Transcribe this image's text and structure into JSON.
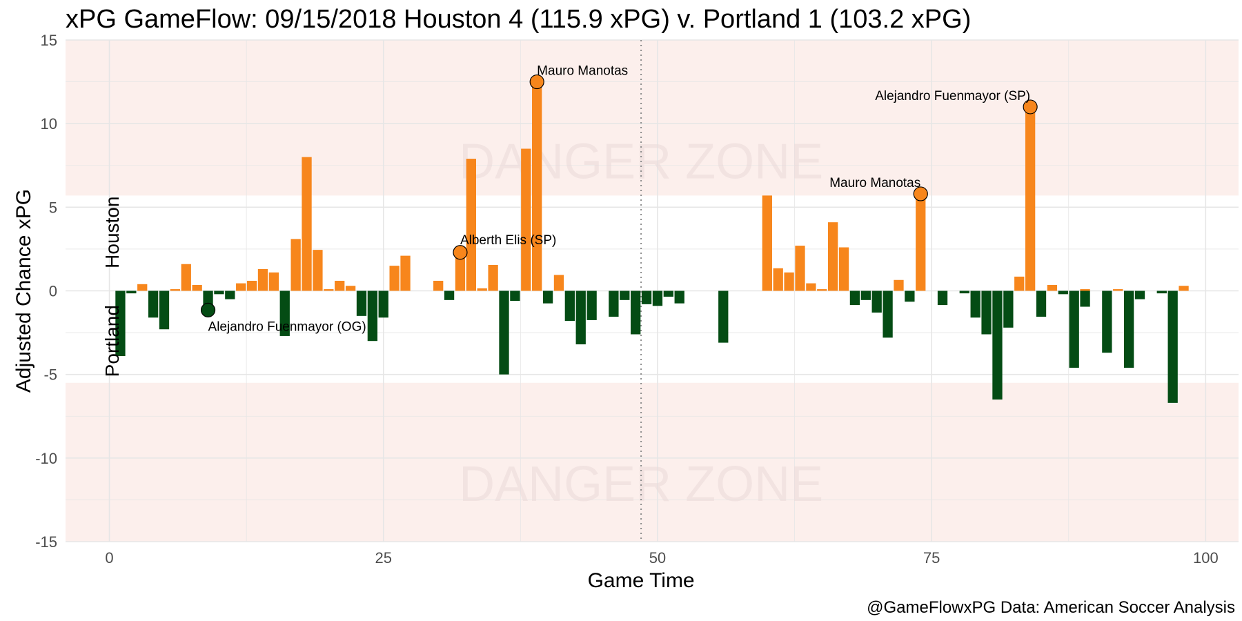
{
  "chart_data": {
    "type": "bar",
    "title": "xPG GameFlow: 09/15/2018 Houston 4 (115.9 xPG) v. Portland 1 (103.2 xPG)",
    "xlabel": "Game Time",
    "ylabel": "Adjusted Chance xPG",
    "caption": "@GameFlowxPG Data: American Soccer Analysis",
    "xlim": [
      -4,
      103
    ],
    "ylim": [
      -15,
      15
    ],
    "x_ticks": [
      0,
      25,
      50,
      75,
      100
    ],
    "x_tick_labels": [
      "0",
      "25",
      "50",
      "75",
      "100"
    ],
    "y_ticks": [
      -15,
      -10,
      -5,
      0,
      5,
      10,
      15
    ],
    "y_tick_labels": [
      "-15",
      "-10",
      "-5",
      "0",
      "5",
      "10",
      "15"
    ],
    "grid": true,
    "halftime_x": 48.5,
    "danger_zone": {
      "label": "DANGER ZONE",
      "upper_from": 5.7,
      "lower_from": -5.5
    },
    "team_labels": {
      "top": "Houston",
      "bottom": "Portland"
    },
    "colors": {
      "home": "#f7861c",
      "away": "#044c14",
      "danger_bg": "#fcefec",
      "grid": "#e6e6e6"
    },
    "series": [
      {
        "name": "Houston",
        "x": [
          3,
          6,
          7,
          8,
          12,
          13,
          14,
          15,
          17,
          18,
          19,
          20,
          21,
          22,
          26,
          27,
          30,
          32,
          33,
          34,
          35,
          38,
          39,
          41,
          60,
          61,
          62,
          63,
          64,
          65,
          66,
          67,
          72,
          74,
          83,
          84,
          86,
          89,
          92,
          98
        ],
        "values": [
          0.4,
          0.1,
          1.6,
          0.35,
          0.45,
          0.6,
          1.3,
          1.1,
          3.1,
          8.0,
          2.45,
          0.1,
          0.6,
          0.3,
          1.5,
          2.1,
          0.6,
          2.3,
          7.9,
          0.15,
          1.55,
          8.5,
          12.5,
          0.95,
          5.7,
          1.35,
          1.1,
          2.7,
          0.45,
          0.1,
          4.1,
          2.6,
          0.65,
          5.8,
          0.85,
          11.0,
          0.35,
          0.1,
          0.1,
          0.3
        ]
      },
      {
        "name": "Portland",
        "x": [
          1,
          2,
          4,
          5,
          9,
          10,
          11,
          16,
          23,
          24,
          25,
          31,
          36,
          37,
          40,
          42,
          43,
          44,
          46,
          47,
          48,
          49,
          50,
          51,
          52,
          56,
          68,
          69,
          70,
          71,
          73,
          76,
          78,
          79,
          80,
          81,
          82,
          85,
          87,
          88,
          89,
          91,
          93,
          94,
          96,
          97
        ],
        "values": [
          -3.9,
          -0.15,
          -1.6,
          -2.3,
          -1.15,
          -0.2,
          -0.5,
          -2.7,
          -1.5,
          -3.0,
          -1.6,
          -0.55,
          -5.0,
          -0.6,
          -0.75,
          -1.8,
          -3.2,
          -1.75,
          -1.55,
          -0.55,
          -2.6,
          -0.8,
          -0.9,
          -0.35,
          -0.75,
          -3.1,
          -0.85,
          -0.55,
          -1.3,
          -2.8,
          -0.65,
          -0.85,
          -0.15,
          -1.6,
          -2.6,
          -6.5,
          -2.2,
          -1.55,
          -0.2,
          -4.6,
          -0.95,
          -3.7,
          -4.6,
          -0.5,
          -0.15,
          -6.7
        ]
      }
    ],
    "annotations": [
      {
        "x": 9,
        "y": -1.15,
        "label": "Alejandro Fuenmayor (OG)",
        "team": "Portland"
      },
      {
        "x": 32,
        "y": 2.3,
        "label": "Alberth Elis (SP)",
        "team": "Houston"
      },
      {
        "x": 39,
        "y": 12.5,
        "label": "Mauro Manotas",
        "team": "Houston"
      },
      {
        "x": 74,
        "y": 5.8,
        "label": "Mauro Manotas",
        "team": "Houston"
      },
      {
        "x": 84,
        "y": 11.0,
        "label": "Alejandro Fuenmayor (SP)",
        "team": "Houston"
      }
    ]
  }
}
